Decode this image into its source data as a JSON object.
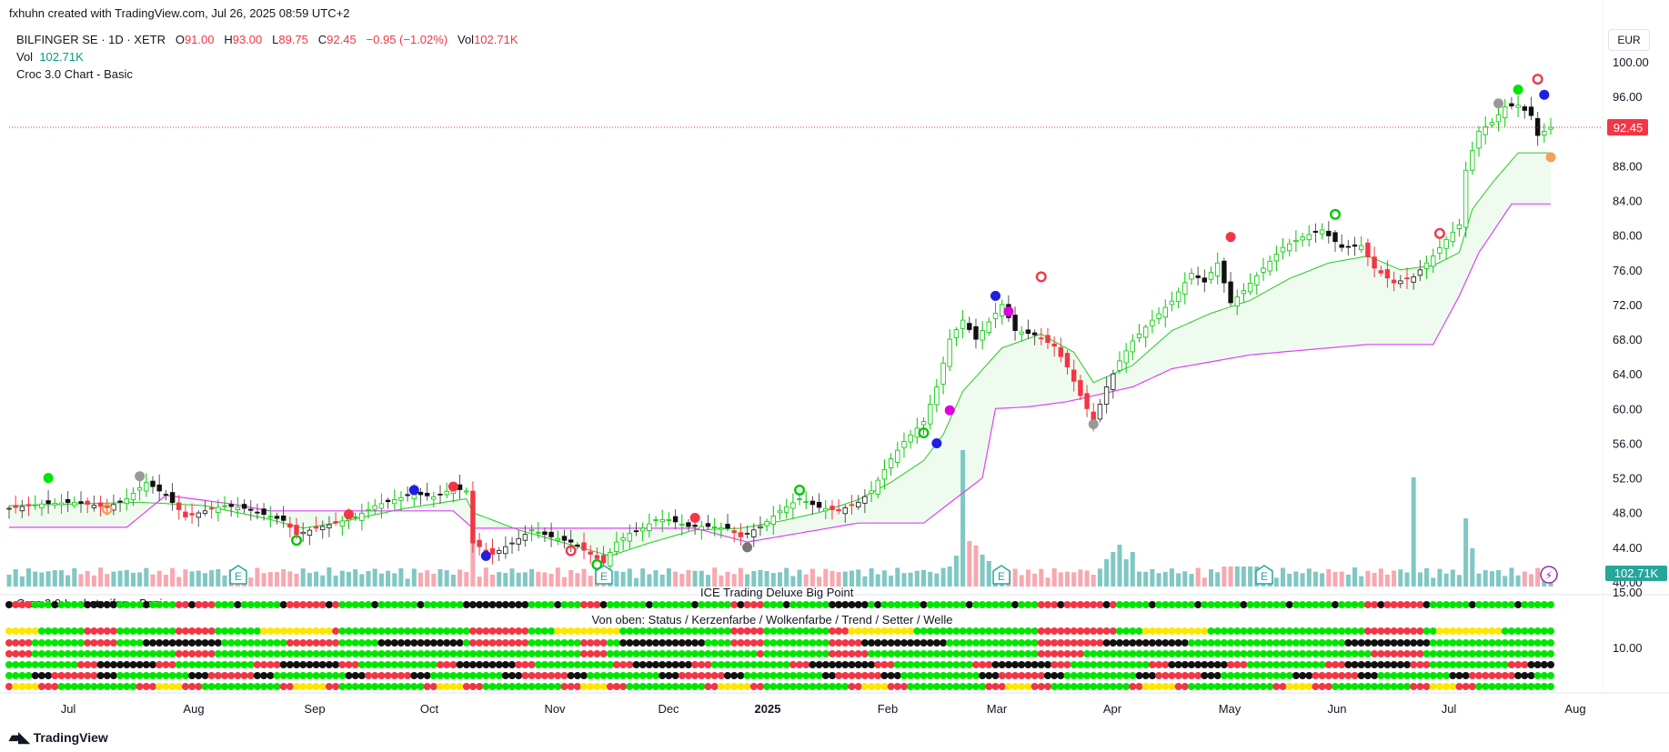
{
  "header": {
    "attribution": "fxhuhn created with TradingView.com, Jul 26, 2025 08:59 UTC+2"
  },
  "legend": {
    "symbol": "BILFINGER SE · 1D · XETR",
    "open_label": "O",
    "open": "91.00",
    "high_label": "H",
    "high": "93.00",
    "low_label": "L",
    "low": "89.75",
    "close_label": "C",
    "close": "92.45",
    "change": "−0.95 (−1.02%)",
    "vol_label": "Vol",
    "vol": "102.71K",
    "vol_row_label": "Vol",
    "vol_row_value": "102.71K",
    "indicator_1": "Croc 3.0 Chart - Basic"
  },
  "currency": "EUR",
  "price_badge": "92.45",
  "volume_badge": "102.71K",
  "indicator_2": "Croc 3.0 Lochstreifen - Basic",
  "indicator_2_title": "ICE Trading Deluxe Big Point",
  "indicator_2_subtitle": "Von oben: Status / Kerzenfarbe / Wolkenfarbe / Trend / Setter / Welle",
  "indicator_2_axis": [
    "15.00",
    "10.00"
  ],
  "earnings_marker": "E",
  "brand": "TradingView",
  "colors": {
    "up": "#00c800",
    "down": "#f23645",
    "cloud_line": "#22cc22",
    "trail_line": "#e040fb",
    "vol_up": "#7fc8c3",
    "vol_down": "#f7a8b0",
    "price_line": "#f23645"
  },
  "chart_data": {
    "type": "candlestick",
    "y_ticks": [
      "100.00",
      "96.00",
      "88.00",
      "84.00",
      "80.00",
      "76.00",
      "72.00",
      "68.00",
      "64.00",
      "60.00",
      "56.00",
      "52.00",
      "48.00",
      "44.00",
      "40.00"
    ],
    "ylim": [
      38.5,
      101
    ],
    "x_labels": [
      "Jul",
      "Aug",
      "Sep",
      "Oct",
      "Nov",
      "Dec",
      "2025",
      "Feb",
      "Mar",
      "Apr",
      "May",
      "Jun",
      "Jul",
      "Aug"
    ],
    "close_path": [
      [
        0,
        48.5
      ],
      [
        5,
        49
      ],
      [
        10,
        49.2
      ],
      [
        15,
        48.6
      ],
      [
        18,
        49.6
      ],
      [
        21,
        51.5
      ],
      [
        24,
        50
      ],
      [
        27,
        47.5
      ],
      [
        30,
        48.2
      ],
      [
        33,
        48.8
      ],
      [
        36,
        48.5
      ],
      [
        39,
        47.8
      ],
      [
        42,
        47.1
      ],
      [
        44,
        45.5
      ],
      [
        47,
        46.2
      ],
      [
        50,
        46.8
      ],
      [
        53,
        47.5
      ],
      [
        56,
        48.8
      ],
      [
        59,
        49.5
      ],
      [
        62,
        50.2
      ],
      [
        65,
        49.8
      ],
      [
        68,
        50.8
      ],
      [
        70,
        50.5
      ],
      [
        71,
        44.5
      ],
      [
        74,
        43.2
      ],
      [
        77,
        44.5
      ],
      [
        80,
        46
      ],
      [
        83,
        45.2
      ],
      [
        86,
        44.6
      ],
      [
        89,
        43.2
      ],
      [
        91,
        42.2
      ],
      [
        93,
        44.6
      ],
      [
        95,
        45.6
      ],
      [
        97,
        46.2
      ],
      [
        99,
        47.2
      ],
      [
        101,
        47.2
      ],
      [
        104,
        46.4
      ],
      [
        107,
        46.4
      ],
      [
        110,
        46.2
      ],
      [
        112,
        45.2
      ],
      [
        115,
        46.4
      ],
      [
        118,
        48.2
      ],
      [
        121,
        49.6
      ],
      [
        124,
        48.6
      ],
      [
        127,
        48.2
      ],
      [
        130,
        49.2
      ],
      [
        132,
        50.5
      ],
      [
        135,
        54.2
      ],
      [
        137,
        56.2
      ],
      [
        140,
        58.5
      ],
      [
        142,
        62.5
      ],
      [
        144,
        68
      ],
      [
        146,
        70.2
      ],
      [
        148,
        68
      ],
      [
        150,
        70
      ],
      [
        152,
        72
      ],
      [
        154,
        69
      ],
      [
        157,
        68.5
      ],
      [
        160,
        67.2
      ],
      [
        162,
        64.8
      ],
      [
        164,
        61.5
      ],
      [
        166,
        58.5
      ],
      [
        168,
        62.5
      ],
      [
        170,
        65.5
      ],
      [
        172,
        67.8
      ],
      [
        175,
        70.2
      ],
      [
        178,
        72.4
      ],
      [
        181,
        75.6
      ],
      [
        183,
        74.6
      ],
      [
        185,
        76.8
      ],
      [
        187,
        72.2
      ],
      [
        189,
        73.6
      ],
      [
        192,
        76.2
      ],
      [
        195,
        78.6
      ],
      [
        198,
        79.8
      ],
      [
        201,
        80.6
      ],
      [
        204,
        78.6
      ],
      [
        207,
        78.8
      ],
      [
        209,
        76.2
      ],
      [
        212,
        74.5
      ],
      [
        215,
        75.2
      ],
      [
        218,
        77.6
      ],
      [
        220,
        79.5
      ],
      [
        222,
        81.2
      ],
      [
        223,
        87.5
      ],
      [
        225,
        92
      ],
      [
        227,
        93
      ],
      [
        229,
        94.8
      ],
      [
        231,
        95
      ],
      [
        233,
        93.8
      ],
      [
        234,
        91.5
      ],
      [
        236,
        92.45
      ]
    ],
    "cloud_path": [
      [
        0,
        48.8
      ],
      [
        20,
        49.2
      ],
      [
        30,
        48.8
      ],
      [
        40,
        47.2
      ],
      [
        45,
        46.2
      ],
      [
        50,
        46.8
      ],
      [
        60,
        48.4
      ],
      [
        70,
        49.6
      ],
      [
        71,
        48
      ],
      [
        78,
        46
      ],
      [
        85,
        44.5
      ],
      [
        92,
        43
      ],
      [
        98,
        44.5
      ],
      [
        105,
        46
      ],
      [
        112,
        46.2
      ],
      [
        118,
        47
      ],
      [
        124,
        48
      ],
      [
        130,
        49.5
      ],
      [
        135,
        51.5
      ],
      [
        140,
        54
      ],
      [
        143,
        57
      ],
      [
        146,
        62
      ],
      [
        152,
        67
      ],
      [
        158,
        68.6
      ],
      [
        163,
        66.5
      ],
      [
        166,
        63
      ],
      [
        172,
        65
      ],
      [
        178,
        69
      ],
      [
        184,
        71
      ],
      [
        190,
        72.5
      ],
      [
        196,
        75
      ],
      [
        202,
        76.8
      ],
      [
        208,
        77.6
      ],
      [
        213,
        76
      ],
      [
        218,
        76.5
      ],
      [
        222,
        78
      ],
      [
        224,
        83
      ],
      [
        227,
        86
      ],
      [
        231,
        89.5
      ],
      [
        236,
        89.5
      ]
    ],
    "trail_path": [
      [
        0,
        46.3
      ],
      [
        18,
        46.3
      ],
      [
        24,
        50
      ],
      [
        34,
        49
      ],
      [
        40,
        48.2
      ],
      [
        55,
        48.2
      ],
      [
        68,
        48.2
      ],
      [
        71,
        46.2
      ],
      [
        105,
        46.2
      ],
      [
        113,
        44.6
      ],
      [
        130,
        46.8
      ],
      [
        140,
        46.8
      ],
      [
        149,
        52
      ],
      [
        151,
        60
      ],
      [
        156,
        60.2
      ],
      [
        162,
        60.8
      ],
      [
        172,
        62.5
      ],
      [
        178,
        64.6
      ],
      [
        190,
        66.2
      ],
      [
        208,
        67.4
      ],
      [
        218,
        67.4
      ],
      [
        222,
        73
      ],
      [
        225,
        78
      ],
      [
        230,
        83.6
      ],
      [
        236,
        83.6
      ]
    ]
  }
}
